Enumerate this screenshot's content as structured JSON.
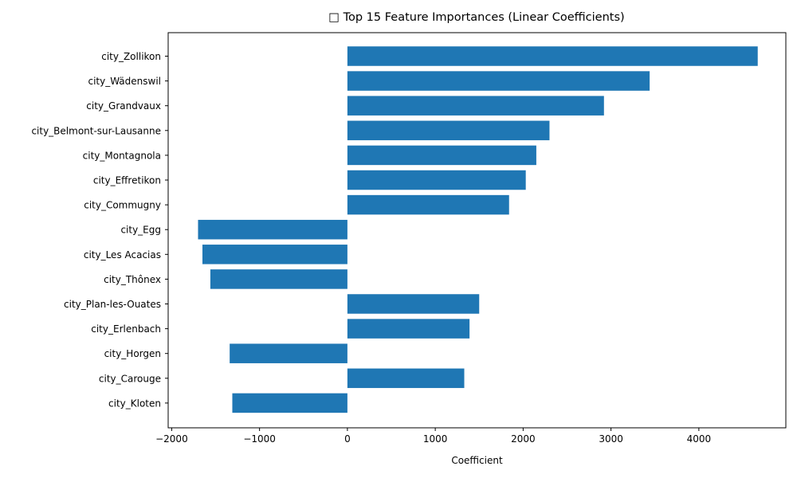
{
  "chart_data": {
    "type": "bar",
    "orientation": "horizontal",
    "title_icon": "□",
    "title": "Top 15 Feature Importances (Linear Coefficients)",
    "xlabel": "Coefficient",
    "ylabel": "",
    "xlim": [
      -2040,
      4990
    ],
    "xticks": [
      -2000,
      -1000,
      0,
      1000,
      2000,
      3000,
      4000
    ],
    "xtick_labels": [
      "−2000",
      "−1000",
      "0",
      "1000",
      "2000",
      "3000",
      "4000"
    ],
    "grid": false,
    "legend": "none",
    "color": "#1f77b4",
    "categories": [
      "city_Zollikon",
      "city_Wädenswil",
      "city_Grandvaux",
      "city_Belmont-sur-Lausanne",
      "city_Montagnola",
      "city_Effretikon",
      "city_Commugny",
      "city_Egg",
      "city_Les Acacias",
      "city_Thônex",
      "city_Plan-les-Ouates",
      "city_Erlenbach",
      "city_Horgen",
      "city_Carouge",
      "city_Kloten"
    ],
    "values": [
      4670,
      3440,
      2920,
      2300,
      2150,
      2030,
      1840,
      -1700,
      -1650,
      -1560,
      1500,
      1390,
      -1340,
      1330,
      -1310
    ]
  }
}
